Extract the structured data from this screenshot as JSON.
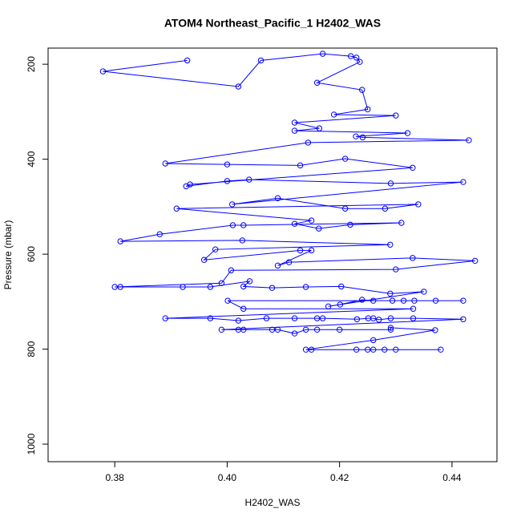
{
  "chart_data": {
    "type": "line",
    "title": "ATOM4 Northeast_Pacific_1 H2402_WAS",
    "xlabel": "H2402_WAS",
    "ylabel": "Pressure (mbar)",
    "color": "#0000ff",
    "markers": true,
    "xlim": [
      0.36814,
      0.448
    ],
    "ylim": [
      1037,
      166
    ],
    "xticks": [
      0.38,
      {
        "value": 0.4,
        "label": "0.40"
      },
      0.42,
      0.44
    ],
    "yticks": [
      200,
      400,
      600,
      800,
      1000
    ],
    "x": [
      0.3929,
      0.3779,
      0.402,
      0.406,
      0.417,
      0.422,
      0.423,
      0.4236,
      0.416,
      0.424,
      0.425,
      0.419,
      0.43,
      0.412,
      0.4164,
      0.412,
      0.4321,
      0.4229,
      0.4241,
      0.443,
      0.4144,
      0.389,
      0.4,
      0.413,
      0.421,
      0.433,
      0.3934,
      0.3927,
      0.4,
      0.4039,
      0.4291,
      0.442,
      0.4009,
      0.409,
      0.421,
      0.4281,
      0.434,
      0.391,
      0.415,
      0.412,
      0.4163,
      0.4219,
      0.431,
      0.4029,
      0.401,
      0.388,
      0.381,
      0.4027,
      0.429,
      0.3979,
      0.3959,
      0.413,
      0.415,
      0.409,
      0.411,
      0.433,
      0.4441,
      0.43,
      0.4007,
      0.399,
      0.38,
      0.381,
      0.3921,
      0.397,
      0.404,
      0.4029,
      0.408,
      0.414,
      0.4203,
      0.429,
      0.435,
      0.418,
      0.4201,
      0.424,
      0.426,
      0.4294,
      0.4314,
      0.4333,
      0.4371,
      0.442,
      0.4001,
      0.4029,
      0.4331,
      0.389,
      0.397,
      0.402,
      0.407,
      0.412,
      0.416,
      0.417,
      0.4231,
      0.4251,
      0.426,
      0.427,
      0.4291,
      0.4331,
      0.442,
      0.399,
      0.402,
      0.4029,
      0.408,
      0.409,
      0.412,
      0.414,
      0.416,
      0.42,
      0.4291,
      0.4291,
      0.437,
      0.426,
      0.414,
      0.415,
      0.423,
      0.425,
      0.426,
      0.428,
      0.43,
      0.438
    ],
    "values": [
      192,
      215,
      247,
      192,
      178,
      183,
      186,
      195,
      239,
      254,
      295,
      306,
      308,
      323,
      335,
      340,
      345,
      352,
      354,
      360,
      365,
      409,
      411,
      413,
      399,
      418,
      453,
      457,
      446,
      443,
      451,
      448,
      495,
      482,
      504,
      504,
      495,
      504,
      529,
      536,
      546,
      538,
      534,
      539,
      539,
      558,
      573,
      571,
      580,
      590,
      612,
      592,
      592,
      624,
      617,
      608,
      614,
      632,
      634,
      661,
      669,
      669,
      669,
      669,
      657,
      668,
      671,
      669,
      668,
      683,
      679,
      710,
      706,
      696,
      698,
      698,
      698,
      698,
      698,
      698,
      698,
      715,
      715,
      735,
      735,
      740,
      735,
      735,
      735,
      735,
      737,
      735,
      735,
      738,
      735,
      735,
      737,
      759,
      759,
      759,
      759,
      759,
      767,
      759,
      759,
      759,
      759,
      755,
      760,
      781,
      801,
      801,
      801,
      801,
      801,
      801,
      801,
      801
    ]
  }
}
